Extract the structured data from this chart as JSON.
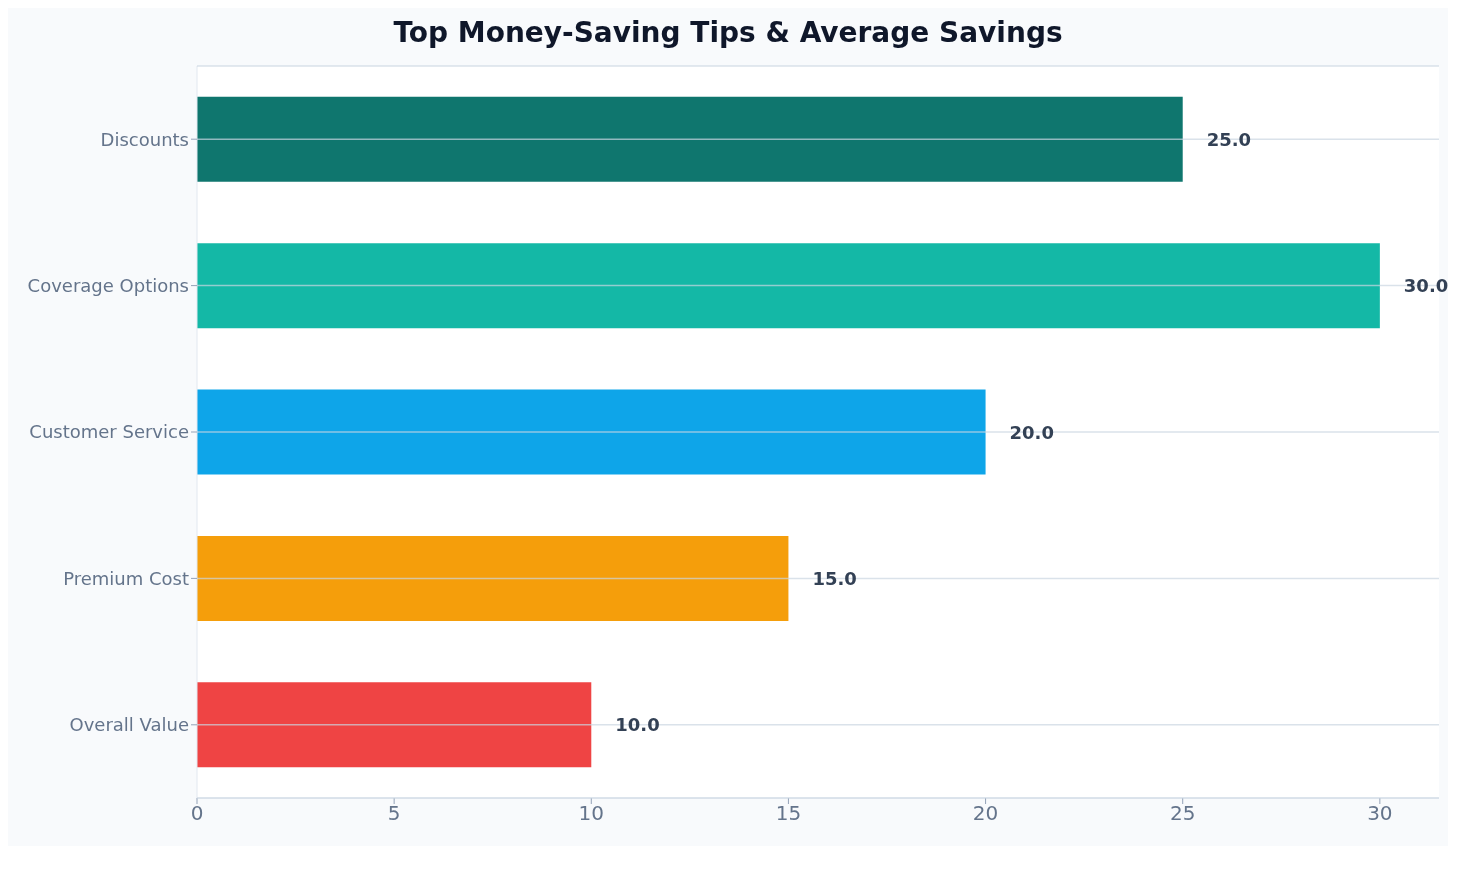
{
  "chart_data": {
    "type": "bar",
    "orientation": "horizontal",
    "title": "Top Money-Saving Tips & Average Savings",
    "categories": [
      "Discounts",
      "Coverage Options",
      "Customer Service",
      "Premium Cost",
      "Overall Value"
    ],
    "values": [
      25,
      30,
      20,
      15,
      10
    ],
    "colors": [
      "#0f766e",
      "#14b8a6",
      "#0ea5e9",
      "#f59e0b",
      "#ef4444"
    ],
    "value_labels": [
      "25.0",
      "30.0",
      "20.0",
      "15.0",
      "10.0"
    ],
    "xlim": [
      0,
      31.5
    ],
    "xticks": [
      0,
      5,
      10,
      15,
      20,
      25,
      30
    ],
    "grid": "y"
  }
}
